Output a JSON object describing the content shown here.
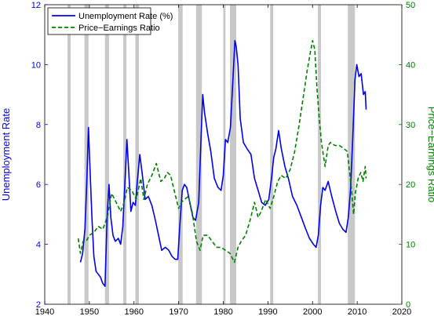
{
  "chart_data": {
    "type": "line",
    "title": "",
    "xlabel": "",
    "ylabel_left": "Unemployment Rate",
    "ylabel_right": "Price−Earnings Ratio",
    "xlim": [
      1940,
      2020
    ],
    "ylim_left": [
      2,
      12
    ],
    "ylim_right": [
      0,
      50
    ],
    "x_ticks": [
      "1940",
      "1950",
      "1960",
      "1970",
      "1980",
      "1990",
      "2000",
      "2010",
      "2020"
    ],
    "y_left_ticks": [
      "2",
      "4",
      "6",
      "8",
      "10",
      "12"
    ],
    "y_right_ticks": [
      "0",
      "10",
      "20",
      "30",
      "40",
      "50"
    ],
    "grid": false,
    "legend_position": "top-left",
    "recessions": [
      [
        1945.1,
        1945.8
      ],
      [
        1948.9,
        1949.8
      ],
      [
        1953.5,
        1954.4
      ],
      [
        1957.6,
        1958.3
      ],
      [
        1960.3,
        1961.1
      ],
      [
        1969.9,
        1970.9
      ],
      [
        1973.9,
        1975.2
      ],
      [
        1980.0,
        1980.5
      ],
      [
        1981.5,
        1982.9
      ],
      [
        1990.5,
        1991.2
      ],
      [
        2001.2,
        2001.9
      ],
      [
        2007.9,
        2009.5
      ]
    ],
    "series": [
      {
        "name": "Unemployment Rate (%)",
        "axis": "left",
        "color": "#0000ee",
        "dash": "solid",
        "x": [
          1948.0,
          1948.5,
          1949.0,
          1949.4,
          1949.8,
          1950.2,
          1950.6,
          1951.0,
          1951.5,
          1952.0,
          1952.5,
          1953.0,
          1953.5,
          1954.0,
          1954.4,
          1954.8,
          1955.3,
          1955.8,
          1956.5,
          1957.0,
          1957.5,
          1958.0,
          1958.4,
          1958.8,
          1959.3,
          1959.8,
          1960.3,
          1960.8,
          1961.3,
          1961.8,
          1962.5,
          1963.2,
          1964.0,
          1964.8,
          1965.5,
          1966.2,
          1967.0,
          1967.8,
          1968.5,
          1969.2,
          1969.8,
          1970.3,
          1970.8,
          1971.3,
          1971.8,
          1972.5,
          1973.2,
          1973.8,
          1974.5,
          1975.0,
          1975.4,
          1975.8,
          1976.5,
          1977.2,
          1978.0,
          1978.8,
          1979.5,
          1980.0,
          1980.5,
          1981.0,
          1981.6,
          1982.2,
          1982.6,
          1982.9,
          1983.3,
          1983.8,
          1984.5,
          1985.3,
          1986.2,
          1987.0,
          1987.8,
          1988.6,
          1989.4,
          1990.2,
          1990.8,
          1991.3,
          1991.8,
          1992.4,
          1993.0,
          1993.8,
          1994.6,
          1995.5,
          1996.5,
          1997.5,
          1998.5,
          1999.3,
          2000.2,
          2000.8,
          2001.3,
          2001.8,
          2002.3,
          2002.8,
          2003.5,
          2004.3,
          2005.2,
          2006.0,
          2006.8,
          2007.5,
          2008.0,
          2008.5,
          2009.0,
          2009.5,
          2009.9,
          2010.4,
          2010.9,
          2011.4,
          2011.8,
          2012.0
        ],
        "values": [
          3.4,
          3.7,
          4.5,
          6.0,
          7.9,
          6.3,
          4.8,
          3.6,
          3.1,
          3.0,
          2.9,
          2.7,
          2.6,
          5.0,
          6.0,
          4.9,
          4.3,
          4.1,
          4.2,
          4.0,
          4.6,
          6.2,
          7.5,
          6.5,
          5.1,
          5.4,
          5.3,
          6.2,
          7.0,
          6.4,
          5.5,
          5.6,
          5.3,
          4.8,
          4.3,
          3.8,
          3.9,
          3.8,
          3.6,
          3.5,
          3.5,
          4.7,
          5.8,
          6.0,
          5.9,
          5.4,
          4.9,
          4.8,
          5.4,
          7.5,
          9.0,
          8.4,
          7.7,
          7.1,
          6.2,
          5.9,
          5.8,
          6.3,
          7.5,
          7.4,
          7.9,
          9.6,
          10.8,
          10.6,
          10.0,
          8.2,
          7.4,
          7.2,
          7.0,
          6.2,
          5.8,
          5.4,
          5.3,
          5.5,
          6.2,
          6.9,
          7.2,
          7.8,
          7.2,
          6.6,
          6.2,
          5.6,
          5.3,
          4.9,
          4.5,
          4.2,
          4.0,
          3.9,
          4.3,
          5.3,
          5.9,
          5.8,
          6.1,
          5.6,
          5.1,
          4.7,
          4.5,
          4.4,
          4.9,
          5.8,
          7.5,
          9.5,
          10.0,
          9.6,
          9.7,
          9.0,
          9.1,
          8.5
        ]
      },
      {
        "name": "Price−Earnings Ratio",
        "axis": "right",
        "color": "#008000",
        "dash": "dashed",
        "x": [
          1947.5,
          1948.0,
          1948.6,
          1949.3,
          1950.0,
          1951.0,
          1952.0,
          1953.0,
          1954.0,
          1955.0,
          1956.0,
          1957.0,
          1957.8,
          1958.5,
          1959.5,
          1960.5,
          1961.5,
          1962.2,
          1963.0,
          1964.0,
          1965.0,
          1966.0,
          1966.8,
          1967.5,
          1968.2,
          1969.0,
          1970.0,
          1970.6,
          1971.3,
          1972.2,
          1973.0,
          1974.0,
          1974.8,
          1975.5,
          1976.5,
          1977.5,
          1978.5,
          1979.5,
          1980.5,
          1981.5,
          1982.5,
          1983.3,
          1984.0,
          1985.0,
          1986.0,
          1987.0,
          1987.8,
          1988.5,
          1989.5,
          1990.5,
          1991.3,
          1992.2,
          1993.0,
          1994.0,
          1995.0,
          1996.0,
          1997.0,
          1998.0,
          1998.8,
          1999.5,
          2000.0,
          2000.5,
          2001.0,
          2001.5,
          2002.0,
          2002.8,
          2003.5,
          2004.0,
          2005.0,
          2006.0,
          2007.0,
          2007.8,
          2008.3,
          2008.8,
          2009.2,
          2009.6,
          2010.2,
          2010.8,
          2011.3,
          2011.8,
          2012.0
        ],
        "values": [
          11.0,
          8.5,
          10.5,
          10.5,
          11.5,
          12.0,
          13.0,
          12.5,
          14.5,
          18.5,
          17.0,
          15.5,
          17.0,
          19.5,
          19.0,
          17.5,
          21.0,
          17.5,
          20.0,
          21.5,
          23.5,
          20.5,
          21.0,
          22.0,
          21.5,
          19.0,
          16.0,
          17.0,
          17.5,
          18.0,
          15.5,
          10.5,
          9.0,
          11.5,
          11.5,
          10.5,
          9.5,
          9.5,
          9.0,
          8.5,
          7.0,
          9.5,
          10.5,
          11.5,
          14.0,
          17.0,
          14.5,
          15.5,
          17.5,
          16.0,
          18.0,
          20.5,
          21.5,
          21.0,
          22.5,
          25.5,
          30.0,
          35.0,
          39.0,
          42.0,
          44.0,
          42.5,
          36.0,
          31.0,
          27.0,
          23.0,
          26.5,
          27.0,
          26.5,
          26.5,
          26.0,
          25.5,
          22.0,
          18.5,
          15.0,
          18.5,
          21.0,
          22.0,
          20.5,
          23.0,
          21.0
        ]
      }
    ]
  }
}
